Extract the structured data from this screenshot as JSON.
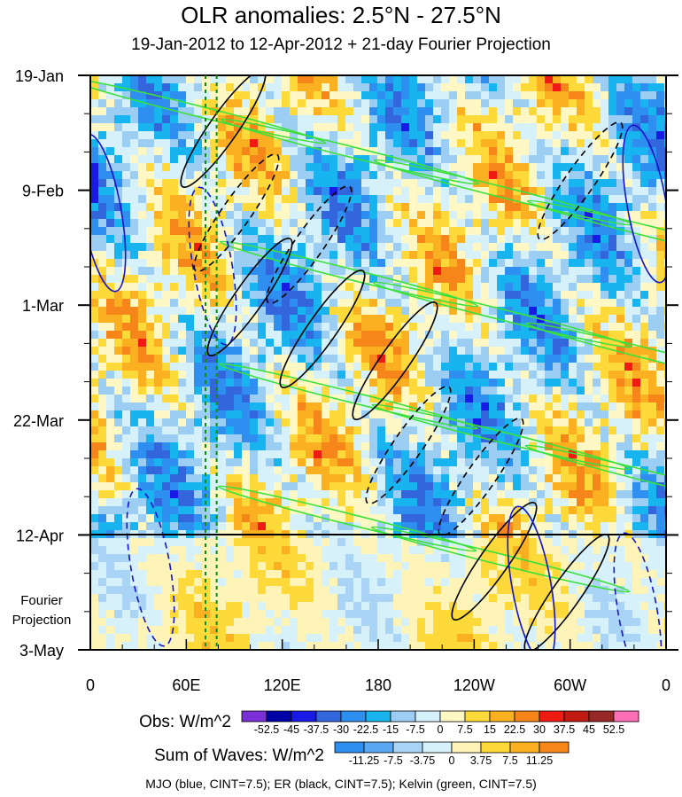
{
  "chart_data": {
    "type": "heatmap",
    "title": "OLR anomalies: 2.5°N - 27.5°N",
    "subtitle": "19-Jan-2012 to 12-Apr-2012 + 21-day Fourier Projection",
    "x_ticks": [
      "0",
      "60E",
      "120E",
      "180",
      "120W",
      "60W",
      "0"
    ],
    "x_tick_values": [
      0,
      60,
      120,
      180,
      240,
      300,
      360
    ],
    "y_ticks": [
      "19-Jan",
      "9-Feb",
      "1-Mar",
      "22-Mar",
      "12-Apr",
      "3-May"
    ],
    "y_tick_days": [
      0,
      21,
      42,
      63,
      84,
      105
    ],
    "projection_start": "12-Apr",
    "projection_label": [
      "Fourier",
      "Projection"
    ],
    "xlim": [
      0,
      360
    ],
    "reference_longitudes": [
      72,
      79
    ],
    "obs_legend": {
      "label": "Obs: W/m^2",
      "levels": [
        "-52.5",
        "-45",
        "-37.5",
        "-30",
        "-22.5",
        "-15",
        "-7.5",
        "0",
        "7.5",
        "15",
        "22.5",
        "30",
        "37.5",
        "45",
        "52.5"
      ],
      "colors": [
        "#7b2fd6",
        "#0000a8",
        "#1a1ae6",
        "#3366dd",
        "#2f8ff0",
        "#18b4ef",
        "#9ccdf2",
        "#d6f1fa",
        "#fff8c4",
        "#fdd93a",
        "#fbb022",
        "#f6861a",
        "#ef1b12",
        "#c11a12",
        "#962828",
        "#ff6fb7"
      ]
    },
    "waves_legend": {
      "label": "Sum of Waves: W/m^2",
      "levels": [
        "-11.25",
        "-7.5",
        "-3.75",
        "0",
        "3.75",
        "7.5",
        "11.25"
      ],
      "colors": [
        "#2f8ff0",
        "#5aa8f2",
        "#a9d4f6",
        "#d6f1fa",
        "#fff4b8",
        "#fdd93a",
        "#fbb022",
        "#f6861a"
      ]
    },
    "series": [
      {
        "name": "MJO",
        "color": "#1515c8",
        "contour_interval": 7.5
      },
      {
        "name": "ER",
        "color": "#000000",
        "contour_interval": 7.5
      },
      {
        "name": "Kelvin",
        "color": "#3be03b",
        "contour_interval": 7.5
      }
    ],
    "footnote": "MJO (blue, CINT=7.5); ER (black, CINT=7.5); Kelvin (green, CINT=7.5)"
  }
}
